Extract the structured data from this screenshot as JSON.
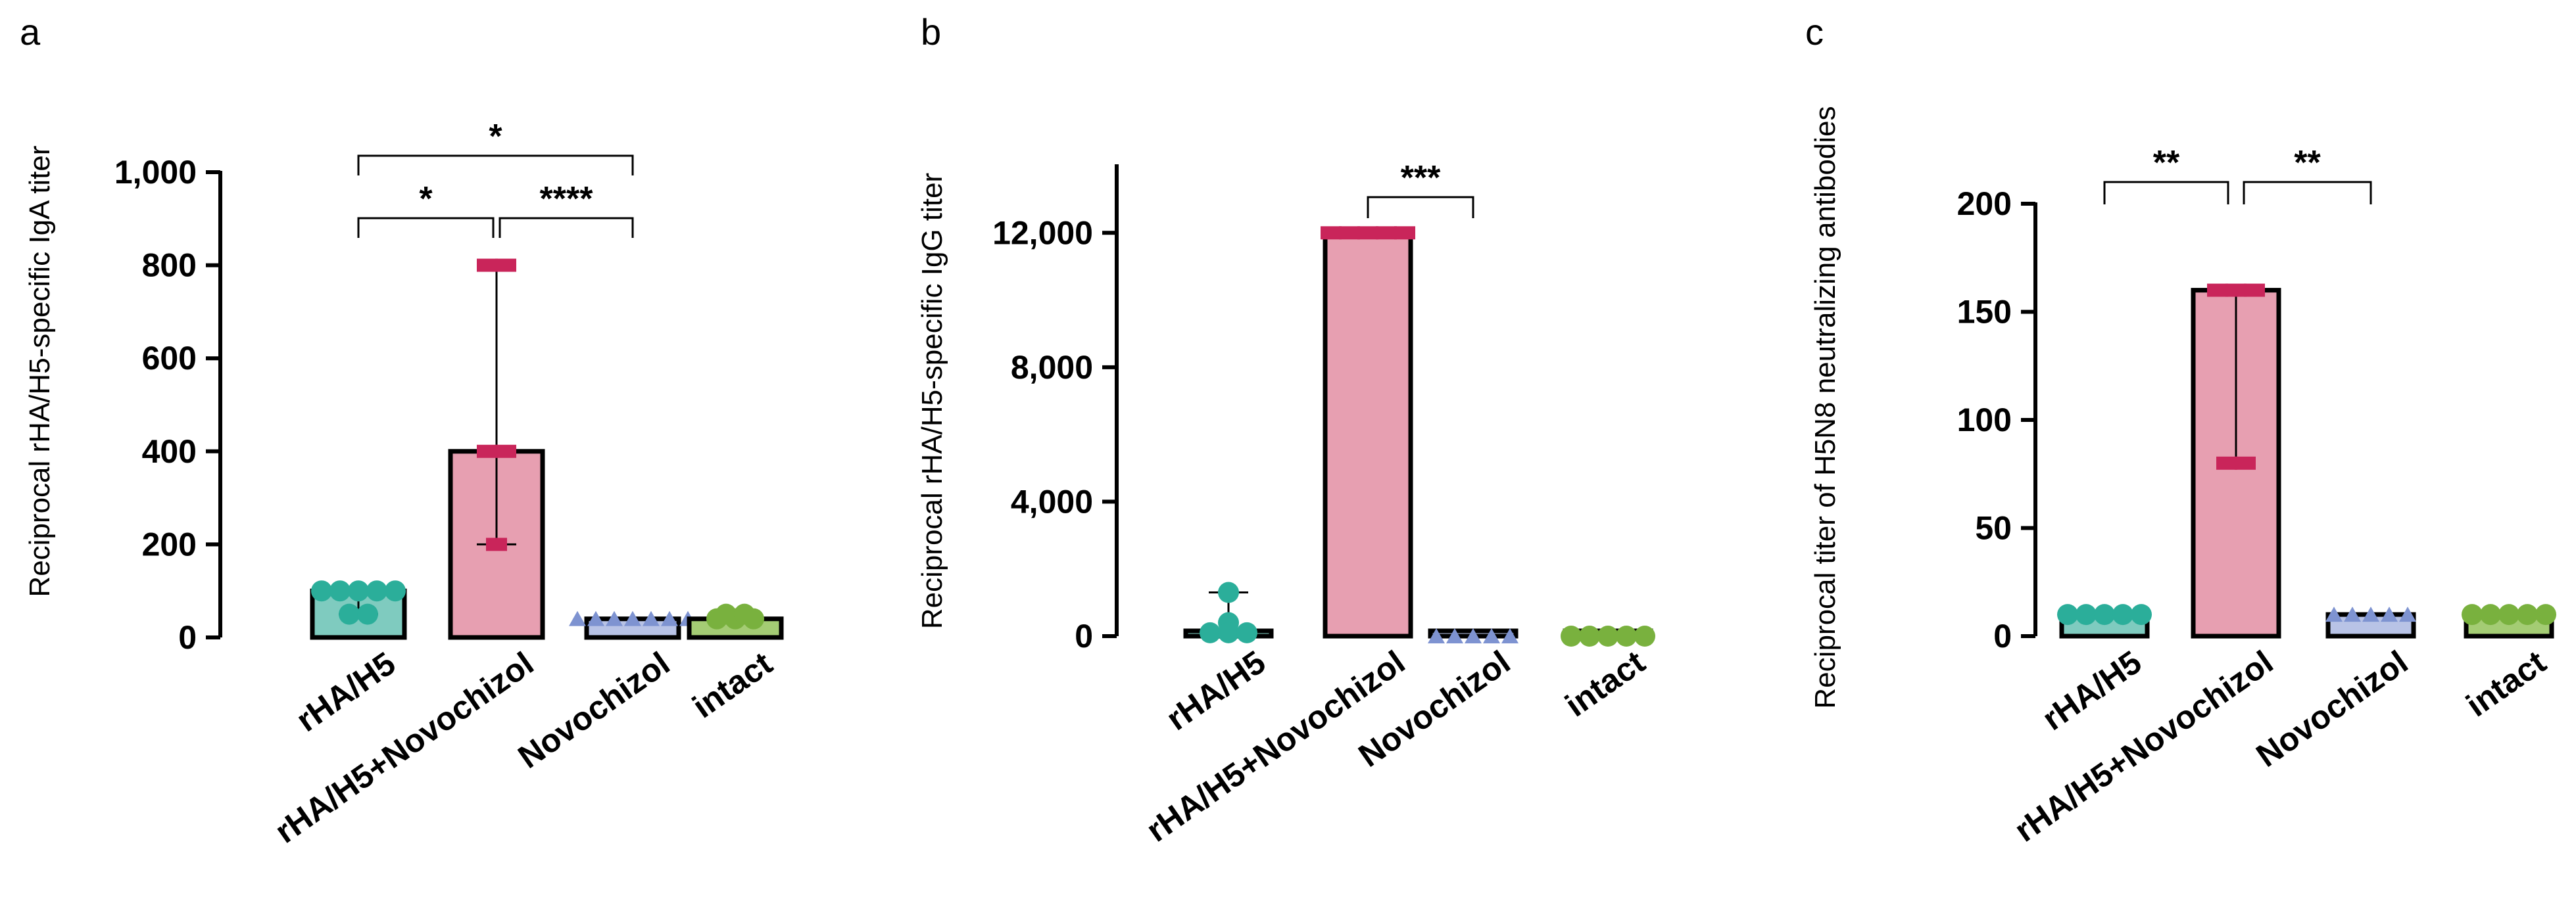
{
  "colors": {
    "rHA_H5": {
      "fill": "#7fcbbf",
      "point": "#2bae9a"
    },
    "rHA_H5_Novochizol": {
      "fill": "#e79fb1",
      "point": "#c9255a"
    },
    "Novochizol": {
      "fill": "#b8c3e6",
      "point": "#7e93d1"
    },
    "intact": {
      "fill": "#a4cc74",
      "point": "#79b13e"
    }
  },
  "chart_data": [
    {
      "panel": "a",
      "type": "bar",
      "categories": [
        "rHA/H5",
        "rHA/H5+Novochizol",
        "Novochizol",
        "intact"
      ],
      "values": [
        100,
        400,
        40,
        40
      ],
      "error_low": [
        50,
        200,
        40,
        30
      ],
      "error_high": [
        100,
        800,
        40,
        50
      ],
      "points": [
        [
          50,
          50,
          100,
          100,
          100,
          100,
          100
        ],
        [
          400,
          400,
          800,
          800,
          200
        ],
        [
          40,
          40,
          40,
          40,
          40,
          40,
          40
        ],
        [
          40,
          40,
          50,
          50,
          40
        ]
      ],
      "point_shapes": [
        "circle",
        "square",
        "triangle",
        "circle"
      ],
      "ylabel": "Reciprocal rHA/H5-specific IgA titer",
      "ylim": [
        0,
        1000
      ],
      "yticks": [
        0,
        200,
        400,
        600,
        800,
        1000
      ],
      "ytick_labels": [
        "0",
        "200",
        "400",
        "600",
        "800",
        "1,000"
      ],
      "significance": [
        {
          "from": 0,
          "to": 2,
          "label": "*"
        },
        {
          "from": 0,
          "to": 1,
          "label": "*"
        },
        {
          "from": 1,
          "to": 2,
          "label": "****"
        }
      ]
    },
    {
      "panel": "b",
      "type": "bar",
      "categories": [
        "rHA/H5",
        "rHA/H5+Novochizol",
        "Novochizol",
        "intact"
      ],
      "values": [
        100,
        12000,
        0,
        0
      ],
      "error_low": [
        0,
        12000,
        0,
        0
      ],
      "error_high": [
        1300,
        12000,
        0,
        0
      ],
      "points": [
        [
          1300,
          400,
          100,
          100,
          100
        ],
        [
          12000,
          12000,
          12000,
          12000,
          12000
        ],
        [
          0,
          0,
          0,
          0,
          0
        ],
        [
          0,
          0,
          0,
          0,
          0
        ]
      ],
      "point_shapes": [
        "circle",
        "square",
        "triangle",
        "circle"
      ],
      "ylabel": "Reciprocal rHA/H5-specific IgG titer",
      "ylim": [
        0,
        14000
      ],
      "yticks": [
        0,
        4000,
        8000,
        12000
      ],
      "ytick_labels": [
        "0",
        "4,000",
        "8,000",
        "12,000"
      ],
      "significance": [
        {
          "from": 1,
          "to": 2,
          "label": "***"
        }
      ]
    },
    {
      "panel": "c",
      "type": "bar",
      "categories": [
        "rHA/H5",
        "rHA/H5+Novochizol",
        "Novochizol",
        "intact"
      ],
      "values": [
        10,
        160,
        10,
        10
      ],
      "error_low": [
        10,
        80,
        10,
        10
      ],
      "error_high": [
        10,
        160,
        10,
        10
      ],
      "points": [
        [
          10,
          10,
          10,
          10,
          10
        ],
        [
          160,
          160,
          160,
          80,
          80
        ],
        [
          10,
          10,
          10,
          10,
          10
        ],
        [
          10,
          10,
          10,
          10,
          10
        ]
      ],
      "point_shapes": [
        "circle",
        "square",
        "triangle",
        "circle"
      ],
      "ylabel": "Reciprocal titer of H5N8 neutralizing antibodies",
      "ylim": [
        0,
        200
      ],
      "yticks": [
        0,
        50,
        100,
        150,
        200
      ],
      "ytick_labels": [
        "0",
        "50",
        "100",
        "150",
        "200"
      ],
      "significance": [
        {
          "from": 0,
          "to": 1,
          "label": "**"
        },
        {
          "from": 1,
          "to": 2,
          "label": "**"
        }
      ]
    }
  ]
}
